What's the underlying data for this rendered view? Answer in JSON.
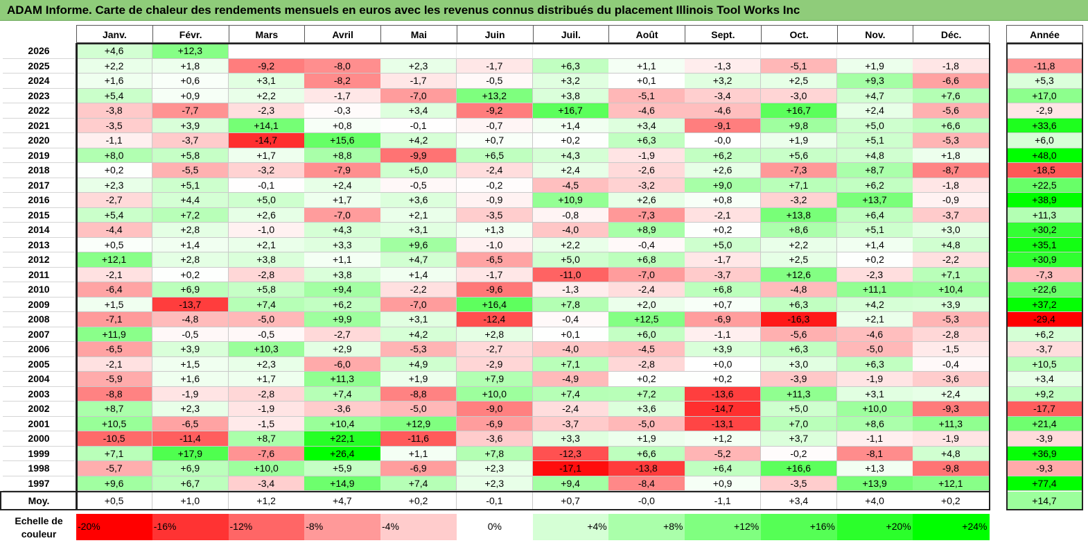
{
  "title": "ADAM Informe. Carte de chaleur des rendements mensuels en euros avec les revenus connus distribués du placement Illinois Tool Works Inc",
  "chart_data": {
    "type": "heatmap",
    "months": [
      "Janv.",
      "Févr.",
      "Mars",
      "Avril",
      "Mai",
      "Juin",
      "Juil.",
      "Août",
      "Sept.",
      "Oct.",
      "Nov.",
      "Déc."
    ],
    "annual_label": "Année",
    "rows": [
      {
        "year": "2026",
        "values": [
          "+4,6",
          "+12,3",
          "",
          "",
          "",
          "",
          "",
          "",
          "",
          "",
          "",
          ""
        ],
        "annual": ""
      },
      {
        "year": "2025",
        "values": [
          "+2,2",
          "+1,8",
          "-9,2",
          "-8,0",
          "+2,3",
          "-1,7",
          "+6,3",
          "+1,1",
          "-1,3",
          "-5,1",
          "+1,9",
          "-1,8"
        ],
        "annual": "-11,8"
      },
      {
        "year": "2024",
        "values": [
          "+1,6",
          "+0,6",
          "+3,1",
          "-8,2",
          "-1,7",
          "-0,5",
          "+3,2",
          "+0,1",
          "+3,2",
          "+2,5",
          "+9,3",
          "-6,6"
        ],
        "annual": "+5,3"
      },
      {
        "year": "2023",
        "values": [
          "+5,4",
          "+0,9",
          "+2,2",
          "-1,7",
          "-7,0",
          "+13,2",
          "+3,8",
          "-5,1",
          "-3,4",
          "-3,0",
          "+4,7",
          "+7,6"
        ],
        "annual": "+17,0"
      },
      {
        "year": "2022",
        "values": [
          "-3,8",
          "-7,7",
          "-2,3",
          "-0,3",
          "+3,4",
          "-9,2",
          "+16,7",
          "-4,6",
          "-4,6",
          "+16,7",
          "+2,4",
          "-5,6"
        ],
        "annual": "-2,9"
      },
      {
        "year": "2021",
        "values": [
          "-3,5",
          "+3,9",
          "+14,1",
          "+0,8",
          "-0,1",
          "-0,7",
          "+1,4",
          "+3,4",
          "-9,1",
          "+9,8",
          "+5,0",
          "+6,6"
        ],
        "annual": "+33,6"
      },
      {
        "year": "2020",
        "values": [
          "-1,1",
          "-3,7",
          "-14,7",
          "+15,6",
          "+4,2",
          "+0,7",
          "+0,2",
          "+6,3",
          "-0,0",
          "+1,9",
          "+5,1",
          "-5,3"
        ],
        "annual": "+6,0"
      },
      {
        "year": "2019",
        "values": [
          "+8,0",
          "+5,8",
          "+1,7",
          "+8,8",
          "-9,9",
          "+6,5",
          "+4,3",
          "-1,9",
          "+6,2",
          "+5,6",
          "+4,8",
          "+1,8"
        ],
        "annual": "+48,0"
      },
      {
        "year": "2018",
        "values": [
          "+0,2",
          "-5,5",
          "-3,2",
          "-7,9",
          "+5,0",
          "-2,4",
          "+2,4",
          "-2,6",
          "+2,6",
          "-7,3",
          "+8,7",
          "-8,7"
        ],
        "annual": "-18,5"
      },
      {
        "year": "2017",
        "values": [
          "+2,3",
          "+5,1",
          "-0,1",
          "+2,4",
          "-0,5",
          "-0,2",
          "-4,5",
          "-3,2",
          "+9,0",
          "+7,1",
          "+6,2",
          "-1,8"
        ],
        "annual": "+22,5"
      },
      {
        "year": "2016",
        "values": [
          "-2,7",
          "+4,4",
          "+5,0",
          "+1,7",
          "+3,6",
          "-0,9",
          "+10,9",
          "+2,6",
          "+0,8",
          "-3,2",
          "+13,7",
          "-0,9"
        ],
        "annual": "+38,9"
      },
      {
        "year": "2015",
        "values": [
          "+5,4",
          "+7,2",
          "+2,6",
          "-7,0",
          "+2,1",
          "-3,5",
          "-0,8",
          "-7,3",
          "-2,1",
          "+13,8",
          "+6,4",
          "-3,7"
        ],
        "annual": "+11,3"
      },
      {
        "year": "2014",
        "values": [
          "-4,4",
          "+2,8",
          "-1,0",
          "+4,3",
          "+3,1",
          "+1,3",
          "-4,0",
          "+8,9",
          "+0,2",
          "+8,6",
          "+5,1",
          "+3,0"
        ],
        "annual": "+30,2"
      },
      {
        "year": "2013",
        "values": [
          "+0,5",
          "+1,4",
          "+2,1",
          "+3,3",
          "+9,6",
          "-1,0",
          "+2,2",
          "-0,4",
          "+5,0",
          "+2,2",
          "+1,4",
          "+4,8"
        ],
        "annual": "+35,1"
      },
      {
        "year": "2012",
        "values": [
          "+12,1",
          "+2,8",
          "+3,8",
          "+1,1",
          "+4,7",
          "-6,5",
          "+5,0",
          "+6,8",
          "-1,7",
          "+2,5",
          "+0,2",
          "-2,2"
        ],
        "annual": "+30,9"
      },
      {
        "year": "2011",
        "values": [
          "-2,1",
          "+0,2",
          "-2,8",
          "+3,8",
          "+1,4",
          "-1,7",
          "-11,0",
          "-7,0",
          "-3,7",
          "+12,6",
          "-2,3",
          "+7,1"
        ],
        "annual": "-7,3"
      },
      {
        "year": "2010",
        "values": [
          "-6,4",
          "+6,9",
          "+5,8",
          "+9,4",
          "-2,2",
          "-9,6",
          "-1,3",
          "-2,4",
          "+6,8",
          "-4,8",
          "+11,1",
          "+10,4"
        ],
        "annual": "+22,6"
      },
      {
        "year": "2009",
        "values": [
          "+1,5",
          "-13,7",
          "+7,4",
          "+6,2",
          "-7,0",
          "+16,4",
          "+7,8",
          "+2,0",
          "+0,7",
          "+6,3",
          "+4,2",
          "+3,9"
        ],
        "annual": "+37,2"
      },
      {
        "year": "2008",
        "values": [
          "-7,1",
          "-4,8",
          "-5,0",
          "+9,9",
          "+3,1",
          "-12,4",
          "-0,4",
          "+12,5",
          "-6,9",
          "-16,3",
          "+2,1",
          "-5,3"
        ],
        "annual": "-29,4"
      },
      {
        "year": "2007",
        "values": [
          "+11,9",
          "-0,5",
          "-0,5",
          "-2,7",
          "+4,2",
          "+2,8",
          "+0,1",
          "+6,0",
          "-1,1",
          "-5,6",
          "-4,6",
          "-2,8"
        ],
        "annual": "+6,2"
      },
      {
        "year": "2006",
        "values": [
          "-6,5",
          "+3,9",
          "+10,3",
          "+2,9",
          "-5,3",
          "-2,7",
          "-4,0",
          "-4,5",
          "+3,9",
          "+6,3",
          "-5,0",
          "-1,5"
        ],
        "annual": "-3,7"
      },
      {
        "year": "2005",
        "values": [
          "-2,1",
          "+1,5",
          "+2,3",
          "-6,0",
          "+4,9",
          "-2,9",
          "+7,1",
          "-2,8",
          "+0,0",
          "+3,0",
          "+6,3",
          "-0,4"
        ],
        "annual": "+10,5"
      },
      {
        "year": "2004",
        "values": [
          "-5,9",
          "+1,6",
          "+1,7",
          "+11,3",
          "+1,9",
          "+7,9",
          "-4,9",
          "+0,2",
          "+0,2",
          "-3,9",
          "-1,9",
          "-3,6"
        ],
        "annual": "+3,4"
      },
      {
        "year": "2003",
        "values": [
          "-8,8",
          "-1,9",
          "-2,8",
          "+7,4",
          "-8,8",
          "+10,0",
          "+7,4",
          "+7,2",
          "-13,6",
          "+11,3",
          "+3,1",
          "+2,4"
        ],
        "annual": "+9,2"
      },
      {
        "year": "2002",
        "values": [
          "+8,7",
          "+2,3",
          "-1,9",
          "-3,6",
          "-5,0",
          "-9,0",
          "-2,4",
          "+3,6",
          "-14,7",
          "+5,0",
          "+10,0",
          "-9,3"
        ],
        "annual": "-17,7"
      },
      {
        "year": "2001",
        "values": [
          "+10,5",
          "-6,5",
          "-1,5",
          "+10,4",
          "+12,9",
          "-6,9",
          "-3,7",
          "-5,0",
          "-13,1",
          "+7,0",
          "+8,6",
          "+11,3"
        ],
        "annual": "+21,4"
      },
      {
        "year": "2000",
        "values": [
          "-10,5",
          "-11,4",
          "+8,7",
          "+22,1",
          "-11,6",
          "-3,6",
          "+3,3",
          "+1,9",
          "+1,2",
          "+3,7",
          "-1,1",
          "-1,9"
        ],
        "annual": "-3,9"
      },
      {
        "year": "1999",
        "values": [
          "+7,1",
          "+17,9",
          "-7,6",
          "+26,4",
          "+1,1",
          "+7,8",
          "-12,3",
          "+6,6",
          "-5,2",
          "-0,2",
          "-8,1",
          "+4,8"
        ],
        "annual": "+36,9"
      },
      {
        "year": "1998",
        "values": [
          "-5,7",
          "+6,9",
          "+10,0",
          "+5,9",
          "-6,9",
          "+2,3",
          "-17,1",
          "-13,8",
          "+6,4",
          "+16,6",
          "+1,3",
          "-9,8"
        ],
        "annual": "-9,3"
      },
      {
        "year": "1997",
        "values": [
          "+9,6",
          "+6,7",
          "-3,4",
          "+14,9",
          "+7,4",
          "+2,3",
          "+9,4",
          "-8,4",
          "+0,9",
          "-3,5",
          "+13,9",
          "+12,1"
        ],
        "annual": "+77,4"
      }
    ],
    "average": {
      "label": "Moy.",
      "values": [
        "+0,5",
        "+1,0",
        "+1,2",
        "+4,7",
        "+0,2",
        "-0,1",
        "+0,7",
        "-0,0",
        "-1,1",
        "+3,4",
        "+4,0",
        "+0,2"
      ],
      "annual": "+14,7"
    },
    "color_scale": {
      "label": "Echelle de couleur",
      "stops": [
        "-20%",
        "-16%",
        "-12%",
        "-8%",
        "-4%",
        "0%",
        "+4%",
        "+8%",
        "+12%",
        "+16%",
        "+20%",
        "+24%"
      ],
      "stop_values": [
        -20,
        -16,
        -12,
        -8,
        -4,
        0,
        4,
        8,
        12,
        16,
        20,
        24
      ],
      "negative_color": "#ff0000",
      "positive_color": "#00ff00",
      "neutral_color": "#ffffff"
    }
  }
}
